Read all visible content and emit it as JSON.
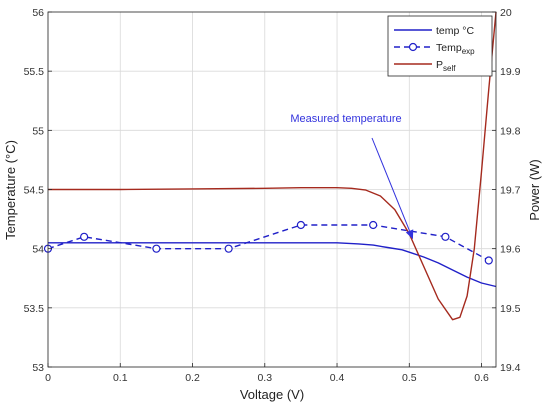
{
  "chart_data": {
    "type": "line",
    "xlabel": "Voltage (V)",
    "ylabel_left": "Temperature (°C)",
    "ylabel_right": "Power (W)",
    "xlim": [
      0,
      0.62
    ],
    "ylim_left": [
      53,
      56
    ],
    "ylim_right": [
      19.4,
      20
    ],
    "x_ticks": [
      "0",
      "0.1",
      "0.2",
      "0.3",
      "0.4",
      "0.5",
      "0.6"
    ],
    "y_ticks_left": [
      "53",
      "53.5",
      "54",
      "54.5",
      "55",
      "55.5",
      "56"
    ],
    "y_ticks_right": [
      "19.4",
      "19.5",
      "19.6",
      "19.7",
      "19.8",
      "19.9",
      "20"
    ],
    "grid": true,
    "legend_position": "top-right",
    "colors": {
      "temp": "#2020c8",
      "temp_exp": "#2020c8",
      "p_self": "#a52a1e"
    },
    "series": [
      {
        "name": "temp °C",
        "axis": "left",
        "style": "solid",
        "x": [
          0,
          0.1,
          0.2,
          0.3,
          0.35,
          0.4,
          0.43,
          0.45,
          0.47,
          0.49,
          0.5,
          0.52,
          0.54,
          0.56,
          0.58,
          0.6,
          0.62
        ],
        "y": [
          54.05,
          54.05,
          54.05,
          54.05,
          54.05,
          54.05,
          54.04,
          54.03,
          54.01,
          53.99,
          53.97,
          53.93,
          53.88,
          53.82,
          53.76,
          53.71,
          53.68
        ]
      },
      {
        "name_main": "Temp",
        "name_sub": "exp",
        "axis": "left",
        "style": "dashed-circle",
        "x": [
          0,
          0.05,
          0.15,
          0.25,
          0.35,
          0.45,
          0.55,
          0.61
        ],
        "y": [
          54.0,
          54.1,
          54.0,
          54.0,
          54.2,
          54.2,
          54.1,
          53.9
        ]
      },
      {
        "name_main": "P",
        "name_sub": "self",
        "axis": "right",
        "style": "solid",
        "x": [
          0,
          0.1,
          0.2,
          0.3,
          0.35,
          0.4,
          0.42,
          0.44,
          0.46,
          0.48,
          0.5,
          0.52,
          0.54,
          0.56,
          0.57,
          0.58,
          0.59,
          0.6,
          0.61,
          0.62
        ],
        "y": [
          19.7,
          19.7,
          19.701,
          19.702,
          19.703,
          19.703,
          19.702,
          19.699,
          19.689,
          19.666,
          19.625,
          19.57,
          19.515,
          19.48,
          19.484,
          19.52,
          19.6,
          19.73,
          19.87,
          20.0
        ]
      }
    ],
    "annotation": {
      "text": "Measured temperature",
      "color": "#3333dd",
      "target_x": 0.505,
      "target_y": 54.08
    }
  }
}
